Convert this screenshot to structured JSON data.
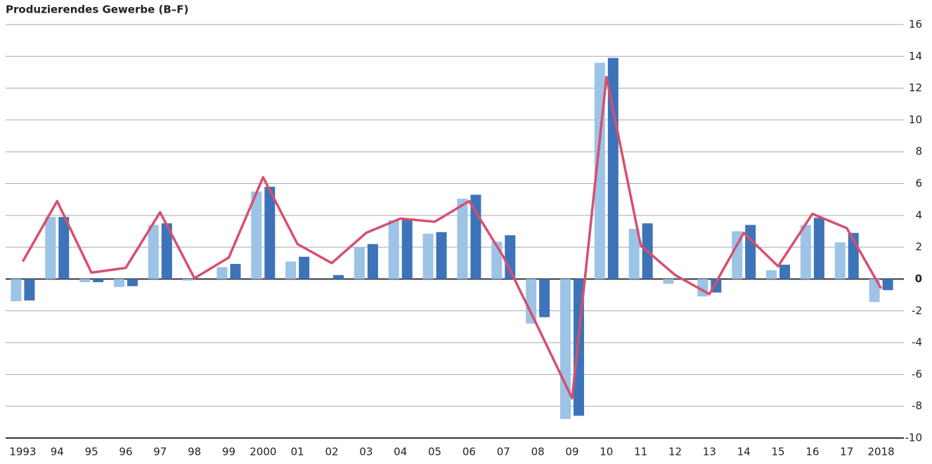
{
  "chart_data": {
    "type": "bar_line",
    "title": "Produzierendes Gewerbe (B–F)",
    "categories": [
      "1993",
      "94",
      "95",
      "96",
      "97",
      "98",
      "99",
      "2000",
      "01",
      "02",
      "03",
      "04",
      "05",
      "06",
      "07",
      "08",
      "09",
      "10",
      "11",
      "12",
      "13",
      "14",
      "15",
      "16",
      "17",
      "2018"
    ],
    "series": [
      {
        "type": "bar",
        "color": "#9dc3e6",
        "values": [
          -1.4,
          3.9,
          -0.2,
          -0.5,
          3.4,
          -0.1,
          0.75,
          5.5,
          1.1,
          0,
          2.0,
          3.7,
          2.85,
          5.05,
          2.35,
          -2.8,
          -8.8,
          13.6,
          3.15,
          -0.3,
          -1.1,
          3.0,
          0.55,
          3.4,
          2.3,
          -1.45
        ]
      },
      {
        "type": "bar",
        "color": "#3d73b9",
        "values": [
          -1.35,
          3.9,
          -0.2,
          -0.45,
          3.5,
          0,
          0.95,
          5.8,
          1.4,
          0.25,
          2.2,
          3.8,
          2.95,
          5.3,
          2.75,
          -2.4,
          -8.6,
          13.9,
          3.5,
          0.05,
          -0.85,
          3.4,
          0.9,
          3.85,
          2.9,
          -0.7
        ]
      },
      {
        "type": "line",
        "color": "#d6506e",
        "values": [
          1.1,
          4.9,
          0.4,
          0.7,
          4.2,
          0.05,
          1.35,
          6.4,
          2.2,
          1.0,
          2.9,
          3.8,
          3.6,
          4.9,
          1.4,
          -3.0,
          -7.5,
          12.7,
          2.1,
          0.25,
          -0.95,
          2.9,
          0.8,
          4.1,
          3.2,
          -0.6
        ]
      }
    ],
    "ylim": [
      -10,
      16
    ],
    "yticks": [
      -10,
      -8,
      -6,
      -4,
      -2,
      0,
      2,
      4,
      6,
      8,
      10,
      12,
      14,
      16
    ],
    "grid": true
  }
}
